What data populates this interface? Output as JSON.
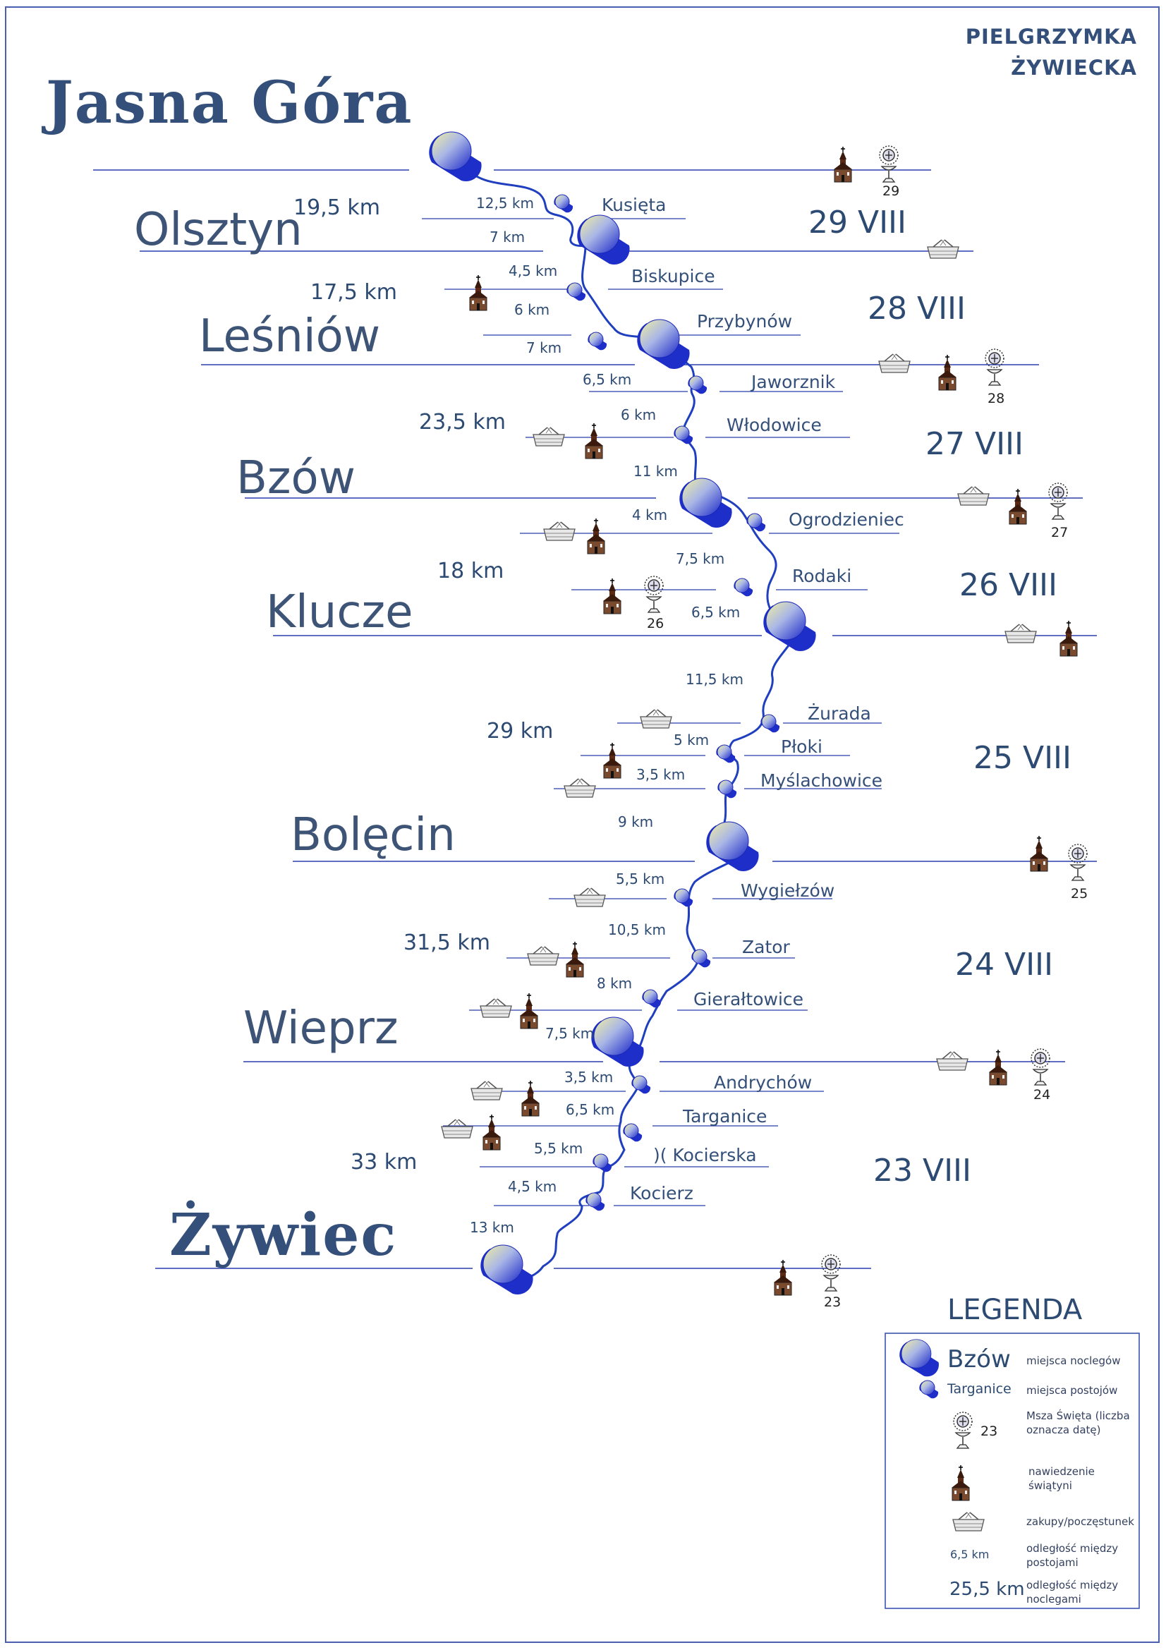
{
  "header": {
    "line1": "PIELGRZYMKA",
    "line2": "ŻYWIECKA"
  },
  "overnight": {
    "jasna_gora": "Jasna Góra",
    "olsztyn": "Olsztyn",
    "lesniow": "Leśniów",
    "bzow": "Bzów",
    "klucze": "Klucze",
    "bolecin": "Bolęcin",
    "wieprz": "Wieprz",
    "zywiec": "Żywiec"
  },
  "dates": {
    "d29": "29 VIII",
    "d28": "28 VIII",
    "d27": "27 VIII",
    "d26": "26 VIII",
    "d25": "25 VIII",
    "d24": "24 VIII",
    "d23": "23 VIII"
  },
  "day_distances": {
    "a": "19,5 km",
    "b": "17,5 km",
    "c": "23,5 km",
    "d": "18 km",
    "e": "29 km",
    "f": "31,5 km",
    "g": "33 km"
  },
  "stops": {
    "kusieta": "Kusięta",
    "biskupice": "Biskupice",
    "przybynow": "Przybynów",
    "jaworznik": "Jaworznik",
    "wlodowice": "Włodowice",
    "ogrodzieniec": "Ogrodzieniec",
    "rodaki": "Rodaki",
    "zurada": "Żurada",
    "ploki": "Płoki",
    "myslachowice": "Myślachowice",
    "wygielzow": "Wygiełzów",
    "zator": "Zator",
    "gieraltowice": "Gierałtowice",
    "andrychow": "Andrychów",
    "targanice": "Targanice",
    "kocierska": ")( Kocierska",
    "kocierz": "Kocierz"
  },
  "segments": {
    "s1": "12,5 km",
    "s2": "7 km",
    "s3": "4,5 km",
    "s4": "6 km",
    "s5": "7 km",
    "s6": "6,5 km",
    "s7": "6 km",
    "s8": "11 km",
    "s9": "4 km",
    "s10": "7,5 km",
    "s11": "6,5 km",
    "s12": "11,5 km",
    "s13": "5 km",
    "s14": "3,5 km",
    "s15": "9 km",
    "s16": "5,5 km",
    "s17": "10,5 km",
    "s18": "8 km",
    "s19": "7,5 km",
    "s20": "3,5 km",
    "s21": "6,5 km",
    "s22": "5,5 km",
    "s23": "4,5 km",
    "s24": "13 km"
  },
  "mass_numbers": {
    "m29": "29",
    "m28": "28",
    "m27": "27",
    "m26": "26",
    "m25": "25",
    "m24": "24",
    "m23": "23"
  },
  "legend": {
    "title": "LEGENDA",
    "sample_big": "Bzów",
    "big_desc": "miejsca noclegów",
    "sample_small": "Targanice",
    "small_desc": "miejsca postojów",
    "mass_num": "23",
    "mass_desc": "Msza Święta (liczba oznacza datę)",
    "church_desc": "nawiedzenie świątyni",
    "basket_desc": "zakupy/poczęstunek",
    "sample_km": "6,5 km",
    "km_desc": "odległość między postojami",
    "sample_dist": "25,5 km",
    "dist_desc": "odległość między noclegami"
  },
  "colors": {
    "line": "#1f3fbf",
    "pin": "#2233cc",
    "pin_light": "#f0ee9a",
    "text": "#2c4a72"
  },
  "icons": [
    "pin-icon",
    "church-icon",
    "monstrance-icon",
    "basket-icon"
  ]
}
